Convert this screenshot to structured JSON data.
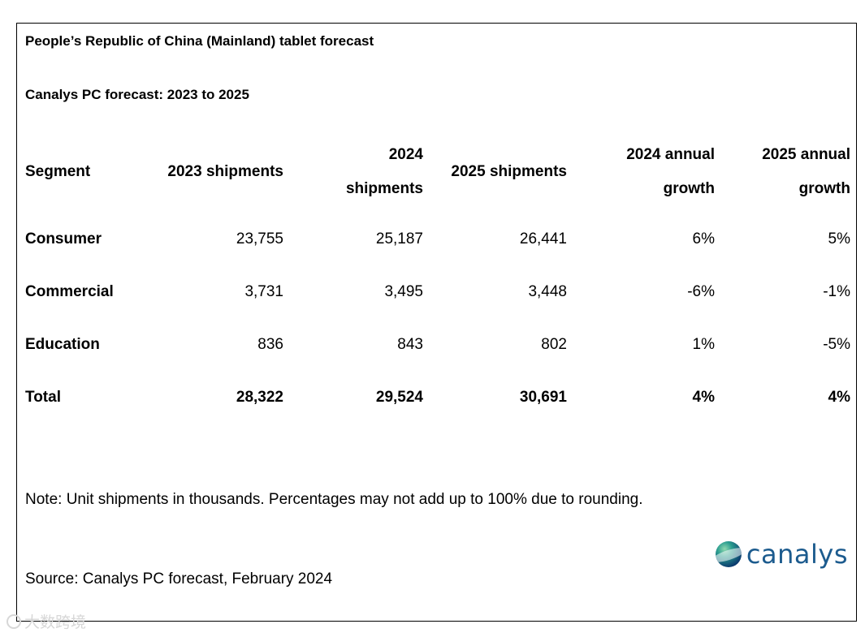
{
  "title": "People’s Republic of China (Mainland) tablet forecast",
  "subtitle": "Canalys PC forecast: 2023 to 2025",
  "table": {
    "headers": {
      "segment": "Segment",
      "s2023_line1": "2023 shipments",
      "s2024_line1": "2024",
      "s2024_line2": "shipments",
      "s2025_line1": "2025 shipments",
      "g2024_line1": "2024 annual",
      "g2024_line2": "growth",
      "g2025_line1": "2025 annual",
      "g2025_line2": "growth"
    },
    "rows": [
      {
        "segment": "Consumer",
        "s2023": "23,755",
        "s2024": "25,187",
        "s2025": "26,441",
        "g2024": "6%",
        "g2025": "5%"
      },
      {
        "segment": "Commercial",
        "s2023": "3,731",
        "s2024": "3,495",
        "s2025": "3,448",
        "g2024": "-6%",
        "g2025": "-1%"
      },
      {
        "segment": "Education",
        "s2023": "836",
        "s2024": "843",
        "s2025": "802",
        "g2024": "1%",
        "g2025": "-5%"
      },
      {
        "segment": "Total",
        "s2023": "28,322",
        "s2024": "29,524",
        "s2025": "30,691",
        "g2024": "4%",
        "g2025": "4%"
      }
    ]
  },
  "note": "Note: Unit shipments in thousands. Percentages may not add up to 100% due to rounding.",
  "source": "Source: Canalys PC forecast, February 2024",
  "logo": {
    "text": "canalys",
    "color": "#1c5b8e",
    "icon": "globe-icon"
  },
  "watermark": {
    "text": "大数跨境",
    "icon": "bubble-icon"
  }
}
